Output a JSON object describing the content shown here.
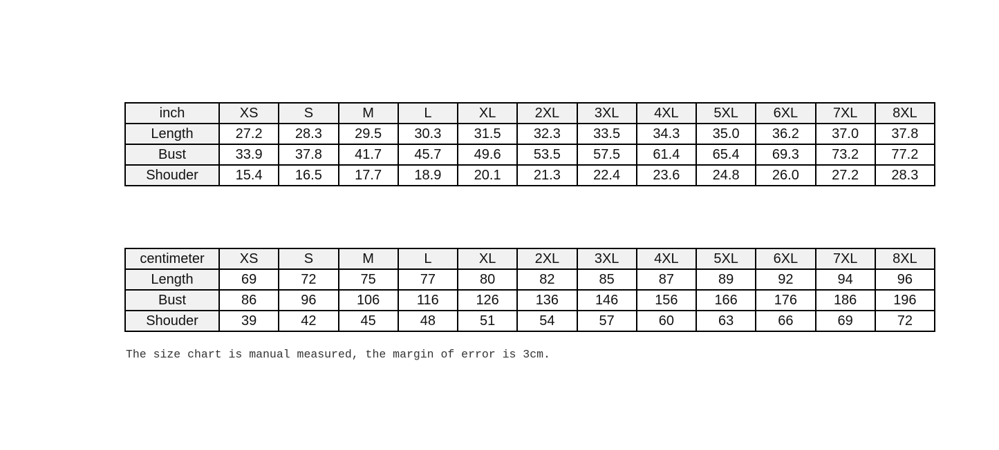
{
  "note": {
    "text": "The size chart is manual measured, the margin of error is 3cm."
  },
  "colors": {
    "page_bg": "#ffffff",
    "header_bg": "#f1f1f1",
    "cell_bg": "#ffffff",
    "border": "#000000",
    "table_text": "#111111",
    "note_text": "#333333"
  },
  "chart_data": [
    {
      "type": "table",
      "title": "inch",
      "columns": [
        "inch",
        "XS",
        "S",
        "M",
        "L",
        "XL",
        "2XL",
        "3XL",
        "4XL",
        "5XL",
        "6XL",
        "7XL",
        "8XL"
      ],
      "rows": [
        [
          "Length",
          "27.2",
          "28.3",
          "29.5",
          "30.3",
          "31.5",
          "32.3",
          "33.5",
          "34.3",
          "35.0",
          "36.2",
          "37.0",
          "37.8"
        ],
        [
          "Bust",
          "33.9",
          "37.8",
          "41.7",
          "45.7",
          "49.6",
          "53.5",
          "57.5",
          "61.4",
          "65.4",
          "69.3",
          "73.2",
          "77.2"
        ],
        [
          "Shouder",
          "15.4",
          "16.5",
          "17.7",
          "18.9",
          "20.1",
          "21.3",
          "22.4",
          "23.6",
          "24.8",
          "26.0",
          "27.2",
          "28.3"
        ]
      ]
    },
    {
      "type": "table",
      "title": "centimeter",
      "columns": [
        "centimeter",
        "XS",
        "S",
        "M",
        "L",
        "XL",
        "2XL",
        "3XL",
        "4XL",
        "5XL",
        "6XL",
        "7XL",
        "8XL"
      ],
      "rows": [
        [
          "Length",
          "69",
          "72",
          "75",
          "77",
          "80",
          "82",
          "85",
          "87",
          "89",
          "92",
          "94",
          "96"
        ],
        [
          "Bust",
          "86",
          "96",
          "106",
          "116",
          "126",
          "136",
          "146",
          "156",
          "166",
          "176",
          "186",
          "196"
        ],
        [
          "Shouder",
          "39",
          "42",
          "45",
          "48",
          "51",
          "54",
          "57",
          "60",
          "63",
          "66",
          "69",
          "72"
        ]
      ]
    }
  ]
}
